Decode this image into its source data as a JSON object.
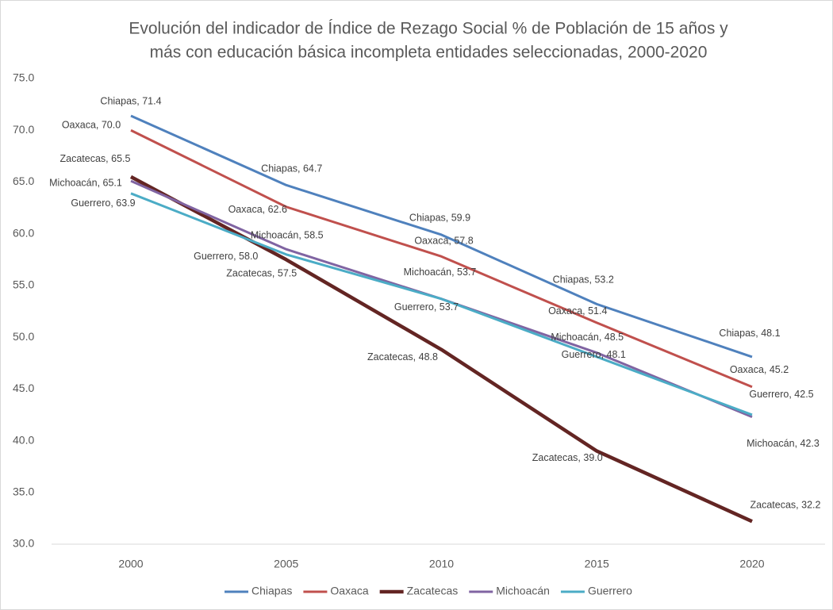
{
  "chart_data": {
    "type": "line",
    "title": [
      "Evolución del indicador de Índice de Rezago Social % de Población de 15 años y",
      "más con educación básica incompleta entidades seleccionadas, 2000-2020"
    ],
    "categories": [
      "2000",
      "2005",
      "2010",
      "2015",
      "2020"
    ],
    "ylim": [
      30,
      75
    ],
    "yticks": [
      {
        "value": 30,
        "label": "30.0"
      },
      {
        "value": 35,
        "label": "35.0"
      },
      {
        "value": 40,
        "label": "40.0"
      },
      {
        "value": 45,
        "label": "45.0"
      },
      {
        "value": 50,
        "label": "50.0"
      },
      {
        "value": 55,
        "label": "55.0"
      },
      {
        "value": 60,
        "label": "60.0"
      },
      {
        "value": 65,
        "label": "65.0"
      },
      {
        "value": 70,
        "label": "70.0"
      },
      {
        "value": 75,
        "label": "75.0"
      }
    ],
    "grid": false,
    "legend": "bottom",
    "series": [
      {
        "name": "Chiapas",
        "color": "#4f81bd",
        "values": [
          71.4,
          64.7,
          59.9,
          53.2,
          48.1
        ],
        "value_labels": [
          "Chiapas, 71.4",
          "Chiapas, 64.7",
          "Chiapas, 59.9",
          "Chiapas, 53.2",
          "Chiapas, 48.1"
        ]
      },
      {
        "name": "Oaxaca",
        "color": "#c0504d",
        "values": [
          70.0,
          62.6,
          57.8,
          51.4,
          45.2
        ],
        "value_labels": [
          "Oaxaca, 70.0",
          "Oaxaca, 62.6",
          "Oaxaca, 57.8",
          "Oaxaca, 51.4",
          "Oaxaca, 45.2"
        ]
      },
      {
        "name": "Zacatecas",
        "color": "#632523",
        "values": [
          65.5,
          57.5,
          48.8,
          39.0,
          32.2
        ],
        "value_labels": [
          "Zacatecas, 65.5",
          "Zacatecas, 57.5",
          "Zacatecas, 48.8",
          "Zacatecas, 39.0",
          "Zacatecas, 32.2"
        ]
      },
      {
        "name": "Michoacán",
        "color": "#8064a2",
        "values": [
          65.1,
          58.5,
          53.7,
          48.5,
          42.3
        ],
        "value_labels": [
          "Michoacán, 65.1",
          "Michoacán, 58.5",
          "Michoacán, 53.7",
          "Michoacán, 48.5",
          "Michoacán, 42.3"
        ]
      },
      {
        "name": "Guerrero",
        "color": "#4bacc6",
        "values": [
          63.9,
          58.0,
          53.7,
          48.1,
          42.5
        ],
        "value_labels": [
          "Guerrero, 63.9",
          "Guerrero, 58.0",
          "Guerrero, 53.7",
          "Guerrero, 48.1",
          "Guerrero, 42.5"
        ]
      }
    ]
  }
}
